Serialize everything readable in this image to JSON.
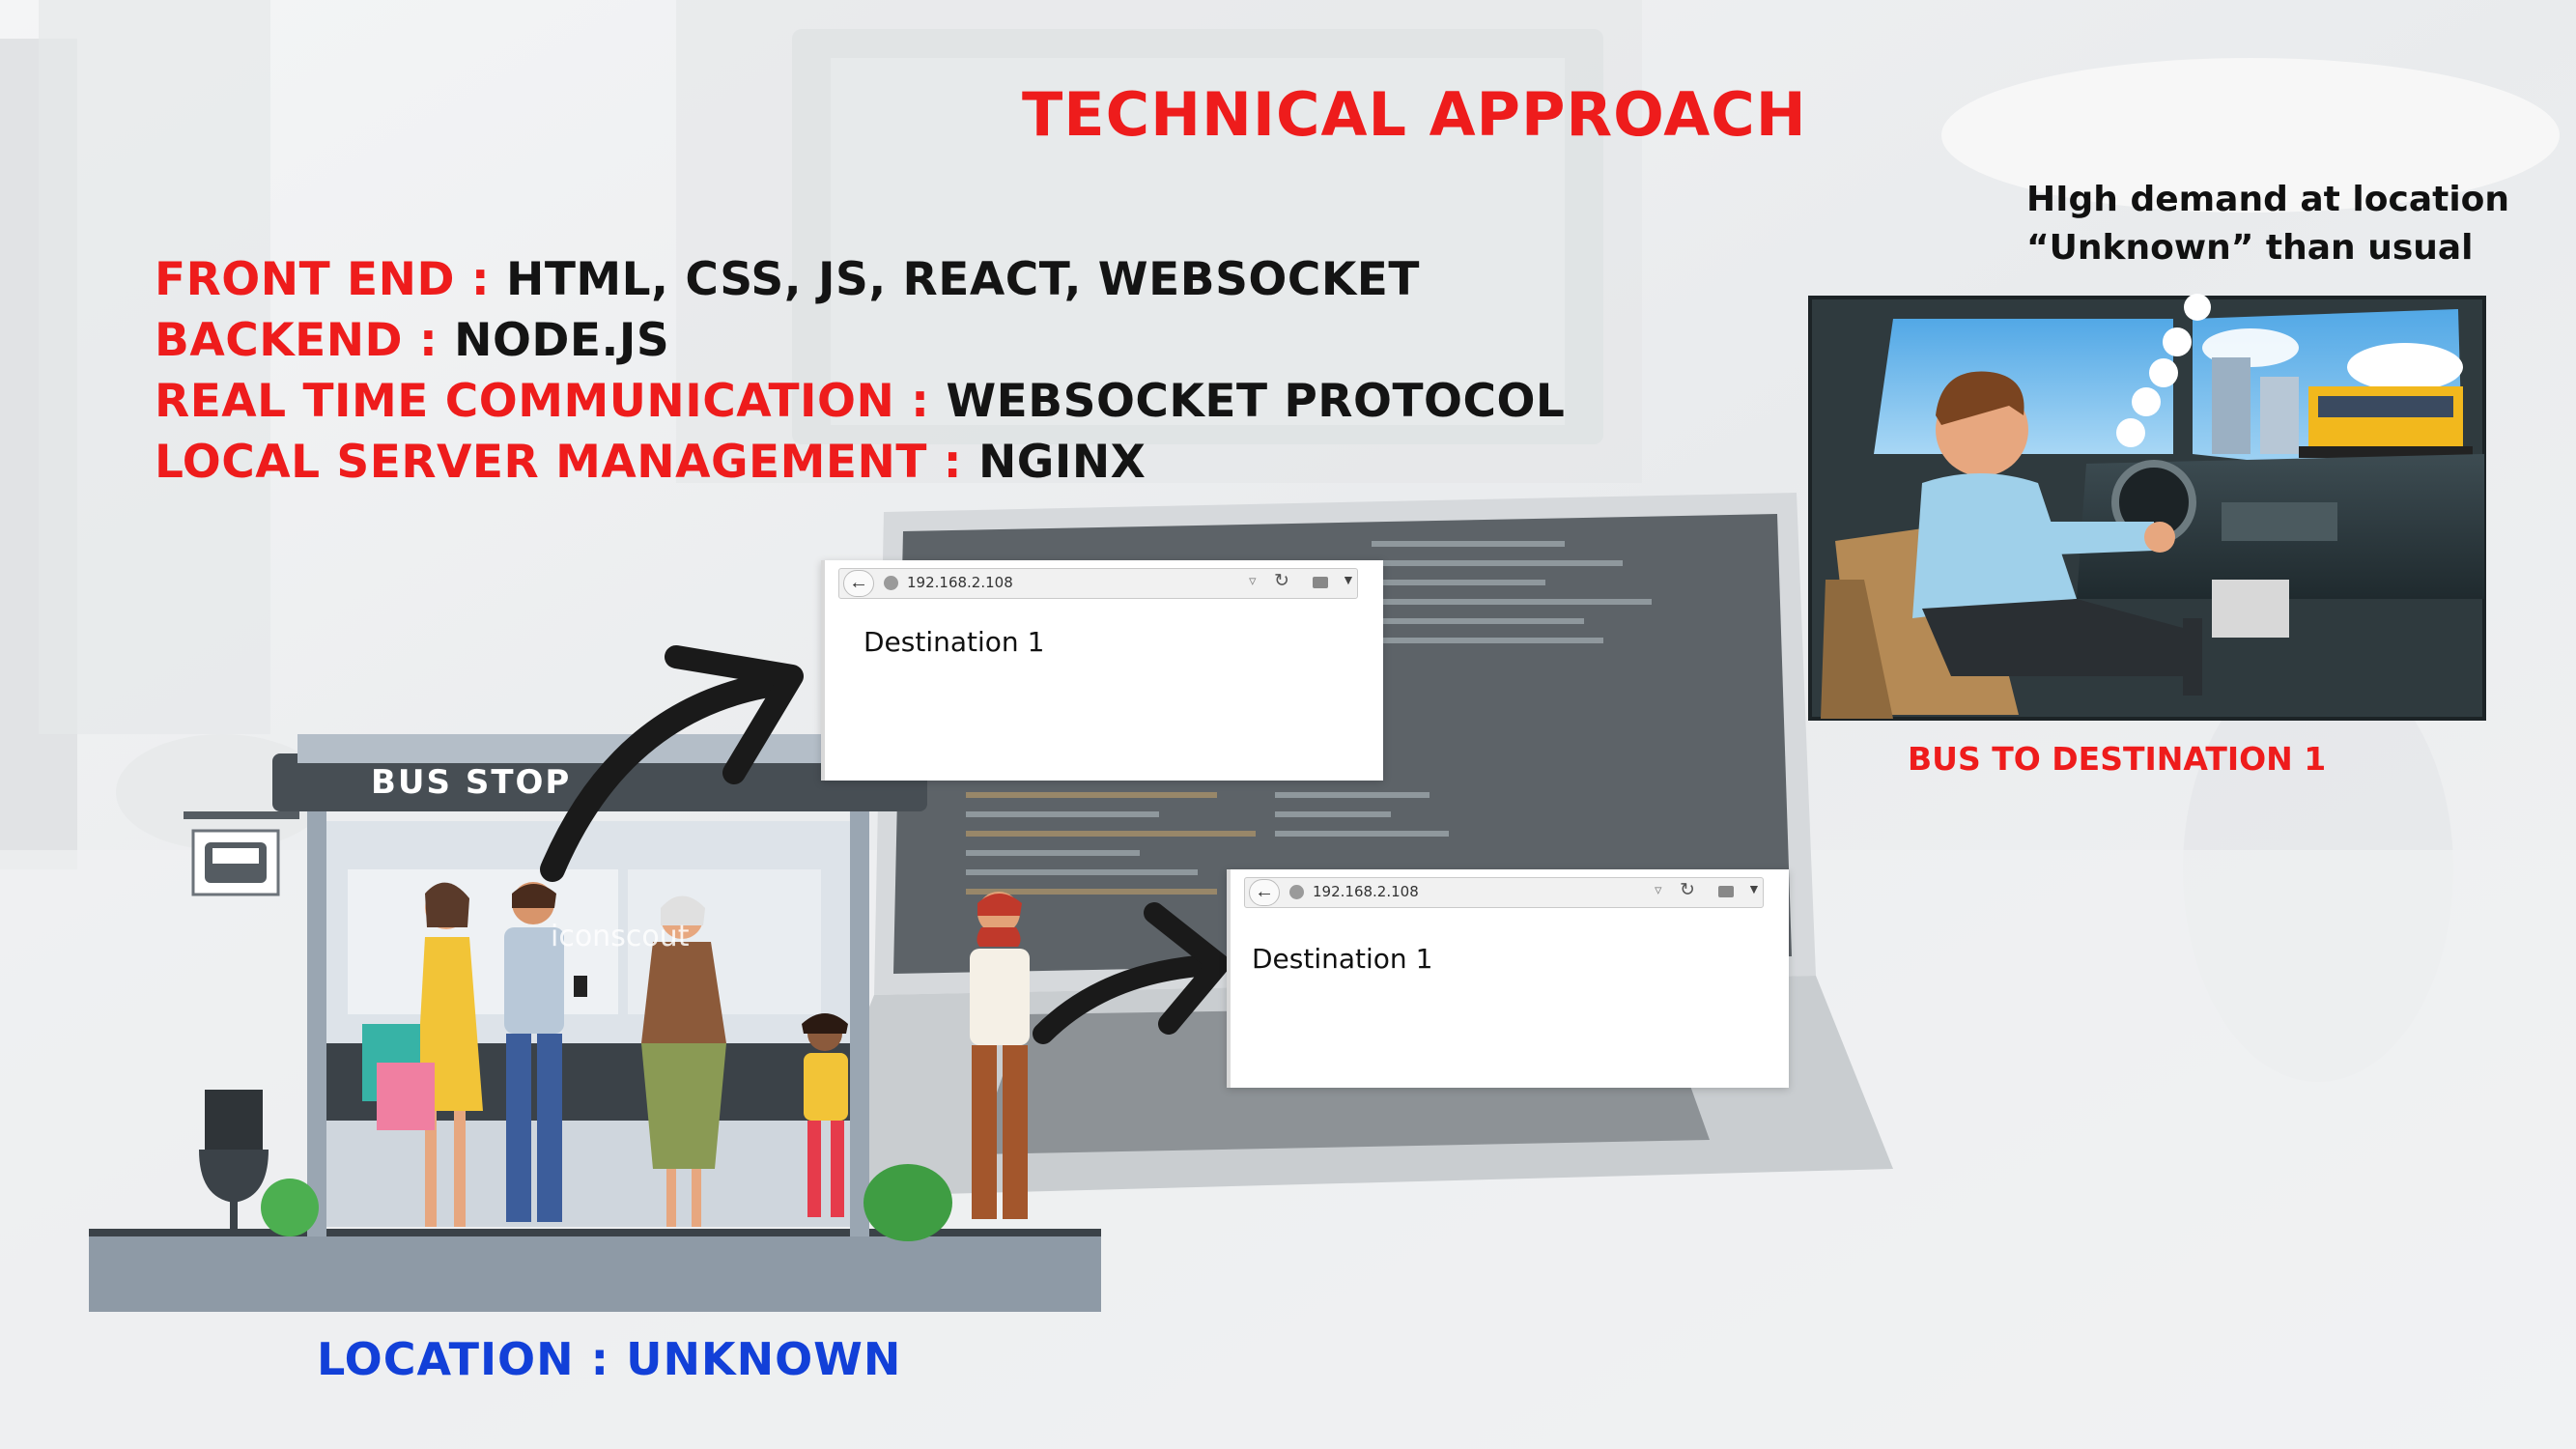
{
  "slide": {
    "title": "TECHNICAL APPROACH",
    "stack": [
      {
        "label": "FRONT END",
        "separator": " : ",
        "value": "HTML, CSS, JS, REACT, WEBSOCKET"
      },
      {
        "label": "BACKEND",
        "separator": " : ",
        "value": "NODE.JS"
      },
      {
        "label": "REAL TIME COMMUNICATION",
        "separator": " : ",
        "value": "WEBSOCKET PROTOCOL"
      },
      {
        "label": "LOCAL SERVER MANAGEMENT",
        "separator": " : ",
        "value": "NGINX"
      }
    ],
    "thought_bubble": "HIgh demand at location “Unknown” than usual",
    "bus_caption": "BUS TO DESTINATION 1",
    "location_label": "LOCATION : UNKNOWN",
    "bus_stop_sign": "BUS STOP",
    "watermark": "iconscout"
  },
  "browser_windows": [
    {
      "url": "192.168.2.108",
      "content": "Destination 1"
    },
    {
      "url": "192.168.2.108",
      "content": "Destination 1"
    }
  ],
  "colors": {
    "accent_red": "#ee1c1c",
    "location_blue": "#1240d8",
    "text_dark": "#141414"
  }
}
